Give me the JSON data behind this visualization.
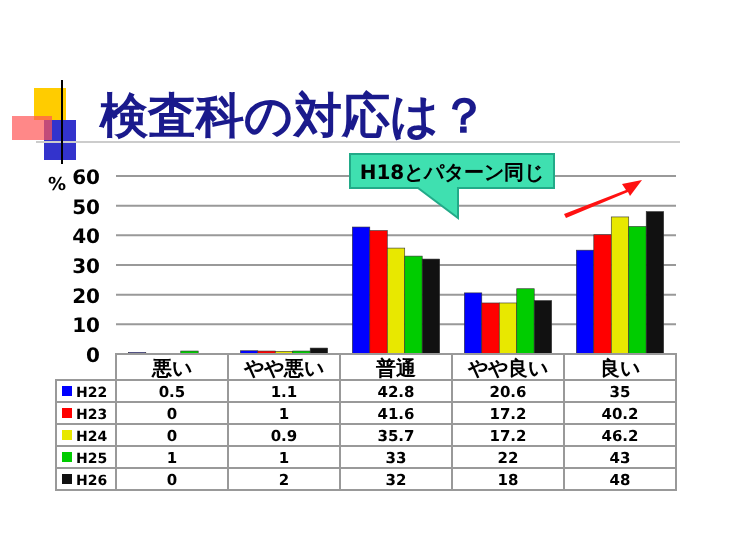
{
  "chart_data": {
    "type": "bar",
    "title": "検査科の対応は？",
    "ylabel": "%",
    "categories": [
      "悪い",
      "やや悪い",
      "普通",
      "やや良い",
      "良い"
    ],
    "series": [
      {
        "name": "H22",
        "color": "#0000ff",
        "values": [
          0.5,
          1.1,
          42.8,
          20.6,
          35
        ]
      },
      {
        "name": "H23",
        "color": "#ff0000",
        "values": [
          0,
          1,
          41.6,
          17.2,
          40.2
        ]
      },
      {
        "name": "H24",
        "color": "#e8e800",
        "values": [
          0,
          0.9,
          35.7,
          17.2,
          46.2
        ]
      },
      {
        "name": "H25",
        "color": "#00cc00",
        "values": [
          1,
          1,
          33,
          22,
          43
        ]
      },
      {
        "name": "H26",
        "color": "#111111",
        "values": [
          0,
          2,
          32,
          18,
          48
        ]
      }
    ],
    "ylim": [
      0,
      60
    ],
    "yticks": [
      0,
      10,
      20,
      30,
      40,
      50,
      60
    ],
    "grid": "y",
    "legend": "bottom",
    "data_labels": true,
    "annotations": [
      "H18とパターン同じ"
    ]
  }
}
